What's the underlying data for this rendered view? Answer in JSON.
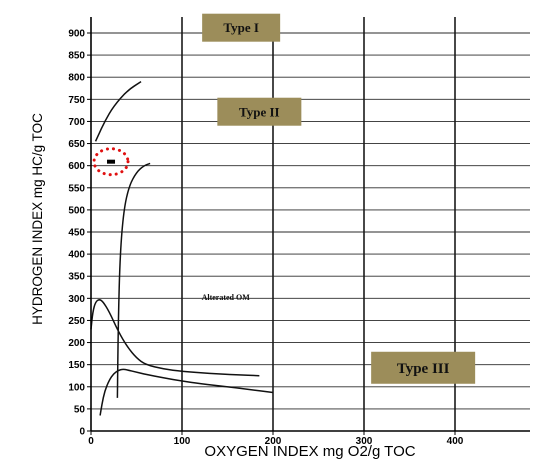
{
  "chart_data": {
    "type": "line",
    "xlabel": "OXYGEN INDEX mg O2/g TOC",
    "ylabel": "HYDROGEN INDEX  mg HC/g TOC",
    "xlim": [
      0,
      480
    ],
    "ylim": [
      0,
      950
    ],
    "x_ticks": [
      "0",
      "100",
      "200",
      "300",
      "400"
    ],
    "y_ticks": [
      "0",
      "50",
      "100",
      "150",
      "200",
      "250",
      "300",
      "350",
      "400",
      "450",
      "500",
      "550",
      "600",
      "650",
      "700",
      "750",
      "800",
      "850",
      "900"
    ],
    "grid": true,
    "series": [
      {
        "x": [
          5,
          15,
          25,
          40,
          55
        ],
        "y": [
          655,
          700,
          735,
          770,
          790
        ]
      },
      {
        "x": [
          29,
          30,
          32,
          36,
          42,
          50,
          58,
          65
        ],
        "y": [
          75,
          250,
          400,
          500,
          555,
          585,
          600,
          605
        ]
      },
      {
        "x": [
          0,
          2,
          5,
          9,
          13,
          20,
          30,
          40,
          50,
          60,
          80,
          100,
          130,
          160,
          185
        ],
        "y": [
          230,
          270,
          292,
          298,
          293,
          270,
          225,
          190,
          165,
          150,
          140,
          135,
          130,
          127,
          125
        ]
      },
      {
        "x": [
          10,
          12,
          15,
          20,
          25,
          30,
          35,
          40,
          50,
          60,
          80,
          100,
          120,
          150,
          170,
          200
        ],
        "y": [
          35,
          60,
          90,
          115,
          130,
          137,
          140,
          138,
          133,
          128,
          120,
          113,
          107,
          100,
          95,
          87
        ]
      }
    ],
    "annotations": [
      {
        "text": "Type I",
        "x": 165,
        "y": 912
      },
      {
        "text": "Type II",
        "x": 185,
        "y": 722
      },
      {
        "text": "Alterated OM",
        "x": 148,
        "y": 303
      },
      {
        "text": "Type III",
        "x": 365,
        "y": 143
      }
    ],
    "highlight_point": {
      "x": 22,
      "y": 609
    }
  },
  "colors": {
    "box_fill": "#9c8d5a",
    "highlight_ring": "#e01010"
  }
}
